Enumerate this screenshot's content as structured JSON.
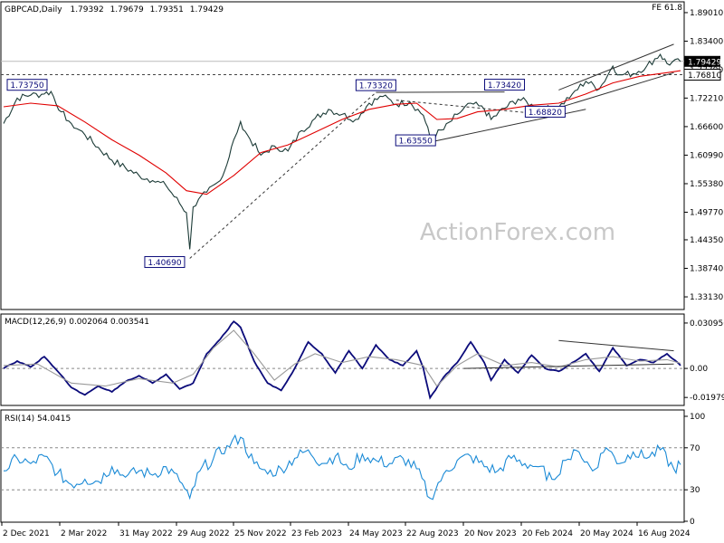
{
  "chart_data": [
    {
      "type": "line",
      "panel": "price",
      "title": "GBPCAD,Daily",
      "ohlc": [
        "1.79392",
        "1.79679",
        "1.79351",
        "1.79429"
      ],
      "corner_label": "FE 61.8",
      "watermark": "ActionForex.com",
      "ylim": [
        1.31,
        1.89
      ],
      "yticks": [
        "1.89010",
        "1.83400",
        "1.77790",
        "1.72210",
        "1.66600",
        "1.60990",
        "1.55380",
        "1.49770",
        "1.44350",
        "1.38740",
        "1.33130"
      ],
      "y_axis_side": "right",
      "current_price": "1.79429",
      "level_price": "1.76810",
      "xlabels": [
        "2 Dec 2021",
        "2 Mar 2022",
        "31 May 2022",
        "29 Aug 2022",
        "25 Nov 2022",
        "23 Feb 2023",
        "24 May 2023",
        "22 Aug 2023",
        "20 Nov 2023",
        "20 Feb 2024",
        "20 May 2024",
        "16 Aug 2024"
      ],
      "annotations": [
        {
          "text": "1.73750",
          "t": 0.02,
          "value": 1.7375
        },
        {
          "text": "1.40690",
          "t": 0.27,
          "value": 1.4069
        },
        {
          "text": "1.73320",
          "t": 0.55,
          "value": 1.7332
        },
        {
          "text": "1.63550",
          "t": 0.63,
          "value": 1.6355
        },
        {
          "text": "1.73420",
          "t": 0.74,
          "value": 1.7342
        },
        {
          "text": "1.68820",
          "t": 0.8,
          "value": 1.6882
        }
      ],
      "series": [
        {
          "name": "",
          "color": "#1b3a36",
          "points": [
            [
              0,
              1.672
            ],
            [
              0.02,
              1.722
            ],
            [
              0.04,
              1.728
            ],
            [
              0.06,
              1.73
            ],
            [
              0.07,
              1.735
            ],
            [
              0.085,
              1.695
            ],
            [
              0.1,
              1.672
            ],
            [
              0.12,
              1.65
            ],
            [
              0.14,
              1.625
            ],
            [
              0.16,
              1.6
            ],
            [
              0.18,
              1.585
            ],
            [
              0.2,
              1.57
            ],
            [
              0.22,
              1.56
            ],
            [
              0.24,
              1.55
            ],
            [
              0.26,
              1.515
            ],
            [
              0.27,
              1.497
            ],
            [
              0.275,
              1.425
            ],
            [
              0.28,
              1.508
            ],
            [
              0.3,
              1.537
            ],
            [
              0.32,
              1.56
            ],
            [
              0.33,
              1.592
            ],
            [
              0.34,
              1.64
            ],
            [
              0.35,
              1.676
            ],
            [
              0.36,
              1.65
            ],
            [
              0.38,
              1.61
            ],
            [
              0.4,
              1.628
            ],
            [
              0.42,
              1.618
            ],
            [
              0.44,
              1.658
            ],
            [
              0.46,
              1.682
            ],
            [
              0.48,
              1.7
            ],
            [
              0.5,
              1.69
            ],
            [
              0.52,
              1.68
            ],
            [
              0.54,
              1.712
            ],
            [
              0.56,
              1.725
            ],
            [
              0.58,
              1.71
            ],
            [
              0.6,
              1.715
            ],
            [
              0.62,
              1.688
            ],
            [
              0.63,
              1.645
            ],
            [
              0.65,
              1.66
            ],
            [
              0.67,
              1.69
            ],
            [
              0.69,
              1.712
            ],
            [
              0.71,
              1.7
            ],
            [
              0.72,
              1.68
            ],
            [
              0.74,
              1.702
            ],
            [
              0.76,
              1.72
            ],
            [
              0.78,
              1.71
            ],
            [
              0.8,
              1.7
            ],
            [
              0.82,
              1.704
            ],
            [
              0.84,
              1.73
            ],
            [
              0.86,
              1.755
            ],
            [
              0.88,
              1.74
            ],
            [
              0.9,
              1.785
            ],
            [
              0.91,
              1.768
            ],
            [
              0.93,
              1.77
            ],
            [
              0.95,
              1.785
            ],
            [
              0.97,
              1.808
            ],
            [
              0.98,
              1.79
            ],
            [
              1.0,
              1.794
            ]
          ]
        },
        {
          "name": "",
          "color": "#e00000",
          "points": [
            [
              0,
              1.705
            ],
            [
              0.04,
              1.712
            ],
            [
              0.08,
              1.707
            ],
            [
              0.12,
              1.675
            ],
            [
              0.16,
              1.64
            ],
            [
              0.2,
              1.61
            ],
            [
              0.24,
              1.575
            ],
            [
              0.27,
              1.54
            ],
            [
              0.3,
              1.533
            ],
            [
              0.34,
              1.57
            ],
            [
              0.38,
              1.615
            ],
            [
              0.42,
              1.63
            ],
            [
              0.46,
              1.655
            ],
            [
              0.5,
              1.68
            ],
            [
              0.54,
              1.7
            ],
            [
              0.58,
              1.71
            ],
            [
              0.61,
              1.712
            ],
            [
              0.64,
              1.68
            ],
            [
              0.67,
              1.682
            ],
            [
              0.7,
              1.695
            ],
            [
              0.74,
              1.7
            ],
            [
              0.78,
              1.708
            ],
            [
              0.82,
              1.712
            ],
            [
              0.86,
              1.73
            ],
            [
              0.9,
              1.752
            ],
            [
              0.94,
              1.765
            ],
            [
              0.98,
              1.772
            ],
            [
              1.0,
              1.776
            ]
          ]
        }
      ],
      "trendlines": [
        {
          "from": [
            0.275,
            1.4069
          ],
          "to": [
            0.55,
            1.7332
          ],
          "dashed": true,
          "color": "#333333"
        },
        {
          "from": [
            0.55,
            1.7332
          ],
          "to": [
            0.74,
            1.7342
          ],
          "dashed": false,
          "color": "#333333"
        },
        {
          "from": [
            0.63,
            1.6355
          ],
          "to": [
            0.86,
            1.7
          ],
          "dashed": false,
          "color": "#333333"
        },
        {
          "from": [
            0.58,
            1.718
          ],
          "to": [
            0.8,
            1.69
          ],
          "dashed": true,
          "color": "#333333"
        },
        {
          "from": [
            0.82,
            1.738
          ],
          "to": [
            0.99,
            1.828
          ],
          "dashed": false,
          "color": "#333333"
        },
        {
          "from": [
            0.8,
            1.695
          ],
          "to": [
            0.99,
            1.772
          ],
          "dashed": false,
          "color": "#333333"
        }
      ],
      "hlines": [
        {
          "value": 1.7943,
          "dashed": false,
          "color": "#bbbbbb"
        },
        {
          "value": 1.7681,
          "dashed": true,
          "color": "#444444"
        }
      ]
    },
    {
      "type": "line",
      "panel": "macd",
      "title": "MACD(12,26,9) 0.002064 0.003541",
      "ylim": [
        -0.024,
        0.034
      ],
      "yticks": [
        "0.030956",
        "0.00",
        "-0.019793"
      ],
      "series": [
        {
          "name": "",
          "color": "#0b0b7a",
          "points": [
            [
              0,
              0.0
            ],
            [
              0.02,
              0.005
            ],
            [
              0.04,
              0.001
            ],
            [
              0.06,
              0.008
            ],
            [
              0.08,
              -0.002
            ],
            [
              0.1,
              -0.013
            ],
            [
              0.12,
              -0.018
            ],
            [
              0.14,
              -0.012
            ],
            [
              0.16,
              -0.016
            ],
            [
              0.18,
              -0.009
            ],
            [
              0.2,
              -0.005
            ],
            [
              0.22,
              -0.01
            ],
            [
              0.24,
              -0.004
            ],
            [
              0.26,
              -0.014
            ],
            [
              0.28,
              -0.01
            ],
            [
              0.3,
              0.01
            ],
            [
              0.32,
              0.02
            ],
            [
              0.34,
              0.032
            ],
            [
              0.35,
              0.028
            ],
            [
              0.37,
              0.005
            ],
            [
              0.39,
              -0.01
            ],
            [
              0.41,
              -0.015
            ],
            [
              0.43,
              0.0
            ],
            [
              0.45,
              0.018
            ],
            [
              0.47,
              0.01
            ],
            [
              0.49,
              -0.003
            ],
            [
              0.51,
              0.012
            ],
            [
              0.53,
              0.0
            ],
            [
              0.55,
              0.016
            ],
            [
              0.57,
              0.006
            ],
            [
              0.59,
              0.002
            ],
            [
              0.61,
              0.012
            ],
            [
              0.62,
              0.0
            ],
            [
              0.63,
              -0.02
            ],
            [
              0.65,
              -0.006
            ],
            [
              0.67,
              0.004
            ],
            [
              0.69,
              0.018
            ],
            [
              0.71,
              0.004
            ],
            [
              0.72,
              -0.008
            ],
            [
              0.74,
              0.006
            ],
            [
              0.76,
              -0.003
            ],
            [
              0.78,
              0.009
            ],
            [
              0.8,
              0.0
            ],
            [
              0.82,
              -0.002
            ],
            [
              0.84,
              0.004
            ],
            [
              0.86,
              0.01
            ],
            [
              0.88,
              -0.002
            ],
            [
              0.9,
              0.014
            ],
            [
              0.92,
              0.002
            ],
            [
              0.94,
              0.006
            ],
            [
              0.96,
              0.004
            ],
            [
              0.98,
              0.01
            ],
            [
              1.0,
              0.002
            ]
          ]
        },
        {
          "name": "",
          "color": "#9a9a9a",
          "points": [
            [
              0,
              0.002
            ],
            [
              0.05,
              0.003
            ],
            [
              0.1,
              -0.01
            ],
            [
              0.15,
              -0.012
            ],
            [
              0.2,
              -0.007
            ],
            [
              0.25,
              -0.01
            ],
            [
              0.28,
              -0.004
            ],
            [
              0.31,
              0.014
            ],
            [
              0.34,
              0.026
            ],
            [
              0.37,
              0.01
            ],
            [
              0.4,
              -0.008
            ],
            [
              0.43,
              0.003
            ],
            [
              0.46,
              0.01
            ],
            [
              0.5,
              0.004
            ],
            [
              0.54,
              0.008
            ],
            [
              0.58,
              0.006
            ],
            [
              0.62,
              0.002
            ],
            [
              0.64,
              -0.012
            ],
            [
              0.67,
              0.002
            ],
            [
              0.7,
              0.01
            ],
            [
              0.74,
              0.002
            ],
            [
              0.78,
              0.004
            ],
            [
              0.82,
              0.001
            ],
            [
              0.86,
              0.006
            ],
            [
              0.9,
              0.008
            ],
            [
              0.94,
              0.005
            ],
            [
              0.98,
              0.006
            ],
            [
              1.0,
              0.0035
            ]
          ]
        }
      ],
      "trendlines": [
        {
          "from": [
            0.68,
            0.0
          ],
          "to": [
            0.99,
            0.003
          ],
          "color": "#333333"
        },
        {
          "from": [
            0.82,
            0.019
          ],
          "to": [
            0.99,
            0.012
          ],
          "color": "#333333"
        }
      ]
    },
    {
      "type": "line",
      "panel": "rsi",
      "title": "RSI(14) 54.0415",
      "ylim": [
        0,
        100
      ],
      "yticks": [
        "100",
        "70",
        "30",
        "0"
      ],
      "series": [
        {
          "name": "",
          "color": "#1a8ad6",
          "points": [
            [
              0,
              48
            ],
            [
              0.02,
              60
            ],
            [
              0.04,
              55
            ],
            [
              0.06,
              62
            ],
            [
              0.08,
              46
            ],
            [
              0.1,
              35
            ],
            [
              0.12,
              40
            ],
            [
              0.14,
              38
            ],
            [
              0.16,
              52
            ],
            [
              0.18,
              42
            ],
            [
              0.2,
              48
            ],
            [
              0.22,
              44
            ],
            [
              0.24,
              52
            ],
            [
              0.26,
              38
            ],
            [
              0.275,
              22
            ],
            [
              0.29,
              48
            ],
            [
              0.31,
              60
            ],
            [
              0.33,
              72
            ],
            [
              0.35,
              80
            ],
            [
              0.37,
              55
            ],
            [
              0.39,
              45
            ],
            [
              0.41,
              50
            ],
            [
              0.43,
              60
            ],
            [
              0.45,
              68
            ],
            [
              0.47,
              55
            ],
            [
              0.49,
              62
            ],
            [
              0.51,
              50
            ],
            [
              0.53,
              64
            ],
            [
              0.55,
              58
            ],
            [
              0.57,
              55
            ],
            [
              0.59,
              60
            ],
            [
              0.61,
              50
            ],
            [
              0.63,
              22
            ],
            [
              0.65,
              45
            ],
            [
              0.67,
              58
            ],
            [
              0.69,
              62
            ],
            [
              0.71,
              52
            ],
            [
              0.73,
              48
            ],
            [
              0.75,
              60
            ],
            [
              0.77,
              55
            ],
            [
              0.79,
              52
            ],
            [
              0.81,
              40
            ],
            [
              0.83,
              58
            ],
            [
              0.85,
              66
            ],
            [
              0.87,
              48
            ],
            [
              0.89,
              70
            ],
            [
              0.91,
              55
            ],
            [
              0.93,
              66
            ],
            [
              0.95,
              60
            ],
            [
              0.97,
              68
            ],
            [
              0.99,
              50
            ],
            [
              1.0,
              54
            ]
          ]
        }
      ]
    }
  ]
}
